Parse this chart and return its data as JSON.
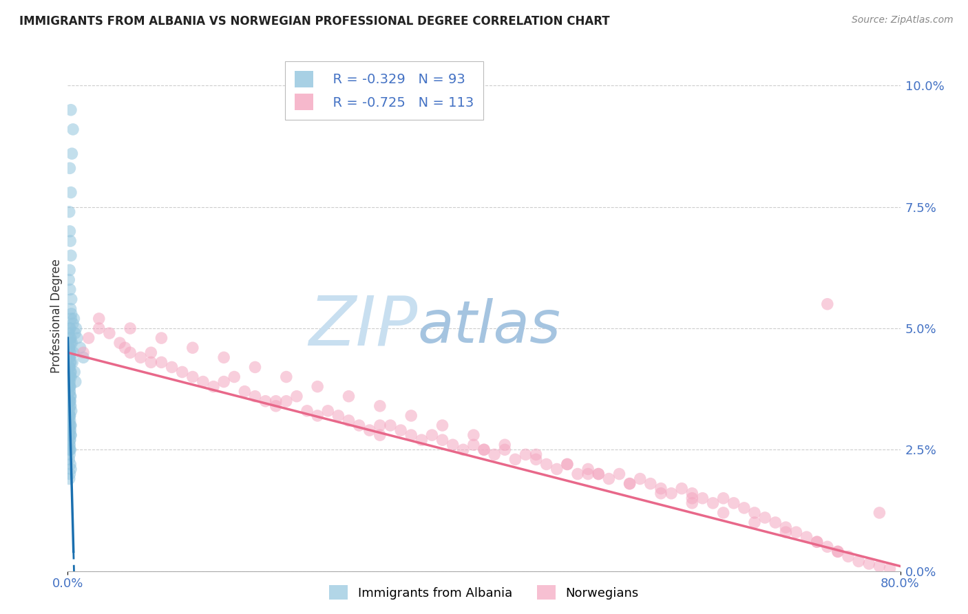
{
  "title": "IMMIGRANTS FROM ALBANIA VS NORWEGIAN PROFESSIONAL DEGREE CORRELATION CHART",
  "source": "Source: ZipAtlas.com",
  "ylabel": "Professional Degree",
  "legend1_label": "Immigrants from Albania",
  "legend2_label": "Norwegians",
  "r1": -0.329,
  "n1": 93,
  "r2": -0.725,
  "n2": 113,
  "blue_color": "#92c5de",
  "pink_color": "#f4a6c0",
  "blue_line_color": "#1a6faf",
  "pink_line_color": "#e8688a",
  "watermark_zip": "ZIP",
  "watermark_atlas": "atlas",
  "watermark_color_zip": "#c5dff0",
  "watermark_color_atlas": "#a8c8e8",
  "xmax": 80.0,
  "ymax": 10.0,
  "yticks": [
    0.0,
    2.5,
    5.0,
    7.5,
    10.0
  ],
  "ytick_labels": [
    "0.0%",
    "2.5%",
    "5.0%",
    "7.5%",
    "10.0%"
  ],
  "xtick_labels": [
    "0.0%",
    "80.0%"
  ],
  "blue_x": [
    0.3,
    0.5,
    0.4,
    0.2,
    0.3,
    0.15,
    0.2,
    0.25,
    0.3,
    0.18,
    0.12,
    0.22,
    0.35,
    0.28,
    0.32,
    0.18,
    0.25,
    0.1,
    0.2,
    0.3,
    0.15,
    0.22,
    0.18,
    0.28,
    0.12,
    0.2,
    0.25,
    0.15,
    0.3,
    0.18,
    0.22,
    0.12,
    0.18,
    0.25,
    0.15,
    0.2,
    0.28,
    0.35,
    0.22,
    0.18,
    0.12,
    0.25,
    0.3,
    0.2,
    0.15,
    0.28,
    0.22,
    0.18,
    0.12,
    0.25,
    0.3,
    0.2,
    0.15,
    0.22,
    0.18,
    0.25,
    0.12,
    0.3,
    0.2,
    0.15,
    0.22,
    0.18,
    0.28,
    0.25,
    0.2,
    0.15,
    0.12,
    0.22,
    0.18,
    0.25,
    0.3,
    0.2,
    0.15,
    0.22,
    0.18,
    0.12,
    0.25,
    0.3,
    0.2,
    0.15,
    0.5,
    0.35,
    0.8,
    0.9,
    1.2,
    1.5,
    0.6,
    0.7,
    0.4,
    0.55,
    0.45,
    0.65,
    0.75
  ],
  "blue_y": [
    9.5,
    9.1,
    8.6,
    8.3,
    7.8,
    7.4,
    7.0,
    6.8,
    6.5,
    6.2,
    6.0,
    5.8,
    5.6,
    5.4,
    5.2,
    5.0,
    5.0,
    4.9,
    4.8,
    4.7,
    4.6,
    4.5,
    4.4,
    4.3,
    4.2,
    4.2,
    4.1,
    4.0,
    4.0,
    3.9,
    3.8,
    3.8,
    3.7,
    3.6,
    3.5,
    3.5,
    3.4,
    3.3,
    3.2,
    3.2,
    3.1,
    3.0,
    3.0,
    2.9,
    2.8,
    2.8,
    2.7,
    2.6,
    2.5,
    2.5,
    4.8,
    4.7,
    4.6,
    4.5,
    4.4,
    4.3,
    4.2,
    4.1,
    4.0,
    3.9,
    3.8,
    3.7,
    3.6,
    3.5,
    3.4,
    3.3,
    3.2,
    3.1,
    3.0,
    2.9,
    2.8,
    2.7,
    2.6,
    2.5,
    2.4,
    2.3,
    2.2,
    2.1,
    2.0,
    1.9,
    5.1,
    5.3,
    5.0,
    4.8,
    4.6,
    4.4,
    5.2,
    4.9,
    4.7,
    4.5,
    4.3,
    4.1,
    3.9
  ],
  "pink_x": [
    1.5,
    2.0,
    3.0,
    4.0,
    5.0,
    5.5,
    6.0,
    7.0,
    8.0,
    9.0,
    10.0,
    11.0,
    12.0,
    13.0,
    14.0,
    15.0,
    16.0,
    17.0,
    18.0,
    19.0,
    20.0,
    21.0,
    22.0,
    23.0,
    24.0,
    25.0,
    26.0,
    27.0,
    28.0,
    29.0,
    30.0,
    31.0,
    32.0,
    33.0,
    34.0,
    35.0,
    36.0,
    37.0,
    38.0,
    39.0,
    40.0,
    41.0,
    42.0,
    43.0,
    44.0,
    45.0,
    46.0,
    47.0,
    48.0,
    49.0,
    50.0,
    51.0,
    52.0,
    53.0,
    54.0,
    55.0,
    56.0,
    57.0,
    58.0,
    59.0,
    60.0,
    61.0,
    62.0,
    63.0,
    64.0,
    65.0,
    66.0,
    67.0,
    68.0,
    69.0,
    70.0,
    71.0,
    72.0,
    73.0,
    74.0,
    75.0,
    76.0,
    77.0,
    78.0,
    79.0,
    3.0,
    6.0,
    9.0,
    12.0,
    15.0,
    18.0,
    21.0,
    24.0,
    27.0,
    30.0,
    33.0,
    36.0,
    39.0,
    42.0,
    45.0,
    48.0,
    51.0,
    54.0,
    57.0,
    60.0,
    63.0,
    66.0,
    69.0,
    72.0,
    74.0,
    8.0,
    20.0,
    30.0,
    40.0,
    50.0,
    60.0,
    73.0,
    78.0
  ],
  "pink_y": [
    4.5,
    4.8,
    5.0,
    4.9,
    4.7,
    4.6,
    4.5,
    4.4,
    4.5,
    4.3,
    4.2,
    4.1,
    4.0,
    3.9,
    3.8,
    3.9,
    4.0,
    3.7,
    3.6,
    3.5,
    3.4,
    3.5,
    3.6,
    3.3,
    3.2,
    3.3,
    3.2,
    3.1,
    3.0,
    2.9,
    2.8,
    3.0,
    2.9,
    2.8,
    2.7,
    2.8,
    2.7,
    2.6,
    2.5,
    2.6,
    2.5,
    2.4,
    2.5,
    2.3,
    2.4,
    2.3,
    2.2,
    2.1,
    2.2,
    2.0,
    2.1,
    2.0,
    1.9,
    2.0,
    1.8,
    1.9,
    1.8,
    1.7,
    1.6,
    1.7,
    1.6,
    1.5,
    1.4,
    1.5,
    1.4,
    1.3,
    1.2,
    1.1,
    1.0,
    0.9,
    0.8,
    0.7,
    0.6,
    0.5,
    0.4,
    0.3,
    0.2,
    0.15,
    0.1,
    0.05,
    5.2,
    5.0,
    4.8,
    4.6,
    4.4,
    4.2,
    4.0,
    3.8,
    3.6,
    3.4,
    3.2,
    3.0,
    2.8,
    2.6,
    2.4,
    2.2,
    2.0,
    1.8,
    1.6,
    1.4,
    1.2,
    1.0,
    0.8,
    0.6,
    0.4,
    4.3,
    3.5,
    3.0,
    2.5,
    2.0,
    1.5,
    5.5,
    1.2
  ]
}
